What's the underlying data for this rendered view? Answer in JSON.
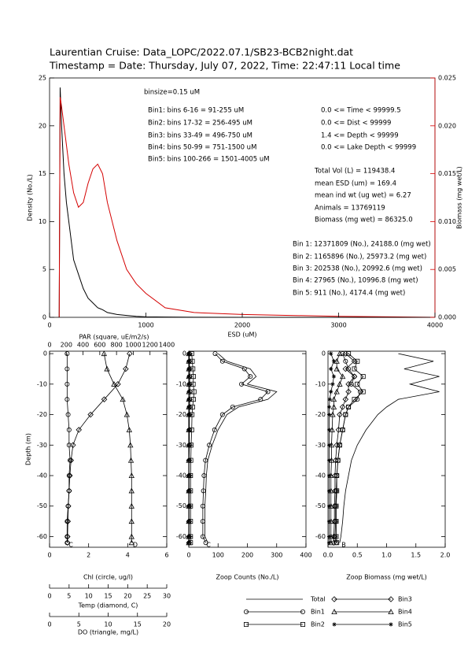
{
  "chart_data": [
    {
      "type": "line",
      "title": "Laurentian Cruise: Data_LOPC/2022.07.1/SB23-BCB2night.dat",
      "subtitle": "Timestamp = Date: Thursday, July 07, 2022, Time: 22:47:11 Local time",
      "xlabel": "ESD (uM)",
      "ylabel": "Density (No./L)",
      "y2label": "Biomass (mg wet/L)",
      "x": [
        100,
        110,
        125,
        150,
        175,
        200,
        250,
        300,
        350,
        400,
        450,
        500,
        550,
        600,
        700,
        800,
        900,
        1000,
        1200,
        1500,
        2000,
        2500,
        3000,
        4000
      ],
      "series": [
        {
          "color": "#000000",
          "values": [
            0,
            24,
            20,
            15,
            12,
            10,
            6,
            4.5,
            3,
            2,
            1.5,
            1,
            0.8,
            0.5,
            0.3,
            0.2,
            0.1,
            0.05,
            0.03,
            0.01,
            0,
            0,
            0,
            0
          ]
        },
        {
          "color": "#d40000",
          "axis": "y2",
          "values": [
            0,
            0.023,
            0.022,
            0.02,
            0.018,
            0.016,
            0.013,
            0.0115,
            0.012,
            0.014,
            0.0155,
            0.016,
            0.015,
            0.012,
            0.008,
            0.005,
            0.0035,
            0.0025,
            0.001,
            0.0005,
            0.0003,
            0.0002,
            0.0001,
            0
          ]
        }
      ],
      "xlim": [
        0,
        4000
      ],
      "xticks": [
        0,
        1000,
        2000,
        3000,
        4000
      ],
      "ylim": [
        0,
        25
      ],
      "yticks": [
        0,
        5,
        10,
        15,
        20,
        25
      ],
      "y2lim": [
        0,
        0.025
      ],
      "y2ticks": [
        {
          "value": 0,
          "label": "0.000"
        },
        {
          "value": 0.005,
          "label": "0.005"
        },
        {
          "value": 0.01,
          "label": "0.010"
        },
        {
          "value": 0.015,
          "label": "0.015"
        },
        {
          "value": 0.02,
          "label": "0.020"
        },
        {
          "value": 0.025,
          "label": "0.025"
        }
      ],
      "annotations": [
        "binsize=0.15 uM",
        "Bin1: bins 6-16 = 91-255 uM",
        "Bin2: bins 17-32 = 256-495 uM",
        "Bin3: bins 33-49 = 496-750 uM",
        "Bin4: bins 50-99 = 751-1500 uM",
        "Bin5: bins 100-266 = 1501-4005 uM",
        "0.0 <= Time < 99999.5",
        "0.0 <= Dist < 99999",
        "1.4 <= Depth < 99999",
        "0.0 <= Lake Depth < 99999",
        "Total Vol (L) = 119438.4",
        "mean ESD (um) = 169.4",
        "mean ind wt (ug wet) = 6.27",
        "Animals = 13769119",
        "Biomass (mg wet) = 86325.0",
        "Bin 1: 12371809 (No.), 24188.0 (mg wet)",
        "Bin 2: 1165896 (No.), 25973.2 (mg wet)",
        "Bin 3: 202538 (No.), 20992.6 (mg wet)",
        "Bin 4: 27965 (No.), 10996.8 (mg wet)",
        "Bin 5: 911 (No.), 4174.4 (mg wet)"
      ]
    },
    {
      "type": "profile",
      "ylabel": "Depth (m)",
      "ylim": [
        -63.5,
        0.8
      ],
      "yticks": [
        0,
        -10,
        -20,
        -30,
        -40,
        -50,
        -60
      ],
      "depth": [
        0,
        -5,
        -10,
        -15,
        -20,
        -25,
        -30,
        -35,
        -40,
        -45,
        -50,
        -55,
        -60,
        -62
      ],
      "axes": [
        {
          "label": "Chl (circle, ug/l)",
          "xlim": [
            0,
            6
          ],
          "xticks": [
            0,
            2,
            4,
            6
          ]
        },
        {
          "label": "Temp (diamond, C)",
          "xlim": [
            0,
            30
          ],
          "xticks": [
            0,
            5,
            10,
            15,
            20,
            25,
            30
          ]
        },
        {
          "label": "DO (triangle, mg/L)",
          "xlim": [
            0,
            20
          ],
          "xticks": [
            0,
            5,
            10,
            15,
            20
          ]
        },
        {
          "label": "PAR (square, uE/m2/s)",
          "xlim": [
            0,
            1400
          ],
          "xticks": [
            0,
            200,
            400,
            600,
            800,
            1000,
            1200,
            1400
          ]
        }
      ],
      "series": [
        {
          "axis": 0,
          "marker": "circle",
          "color": "#000000",
          "values": [
            0.9,
            0.9,
            0.9,
            0.9,
            0.95,
            1.0,
            1.0,
            1.05,
            1.0,
            1.0,
            0.95,
            0.9,
            0.9,
            0.9
          ]
        },
        {
          "axis": 1,
          "marker": "diamond",
          "color": "#000000",
          "values": [
            20.5,
            19.5,
            17.5,
            14,
            10.5,
            7.5,
            6,
            5.5,
            5.2,
            5,
            4.8,
            4.7,
            4.6,
            4.6
          ]
        },
        {
          "axis": 2,
          "marker": "triangle",
          "color": "#000000",
          "values": [
            9.3,
            9.8,
            11,
            12.5,
            13.2,
            13.6,
            13.8,
            13.9,
            14,
            14,
            14,
            14,
            14,
            14
          ]
        }
      ],
      "annotations": [
        "C",
        "D"
      ]
    },
    {
      "type": "profile",
      "ylim": [
        -63.5,
        0.8
      ],
      "yticks": [
        0,
        -10,
        -20,
        -30,
        -40,
        -50,
        -60
      ],
      "depth": [
        0,
        -2.5,
        -5,
        -7.5,
        -10,
        -12.5,
        -15,
        -17.5,
        -20,
        -25,
        -30,
        -35,
        -40,
        -45,
        -50,
        -55,
        -60,
        -62
      ],
      "axes": [
        {
          "label": "Zoop Counts (No./L)",
          "xlim": [
            0,
            400
          ],
          "xticks": [
            0,
            100,
            200,
            300,
            400
          ]
        }
      ],
      "series": [
        {
          "name": "Total",
          "axis": 0,
          "marker": "none",
          "color": "#000000",
          "values": [
            100,
            130,
            210,
            230,
            200,
            300,
            270,
            170,
            130,
            100,
            80,
            65,
            60,
            58,
            55,
            55,
            55,
            65
          ]
        },
        {
          "name": "Bin1",
          "axis": 0,
          "marker": "circle",
          "color": "#000000",
          "values": [
            90,
            115,
            190,
            210,
            180,
            270,
            245,
            150,
            115,
            88,
            70,
            57,
            52,
            50,
            48,
            48,
            48,
            58
          ]
        },
        {
          "name": "Bin2",
          "axis": 0,
          "marker": "square",
          "color": "#000000",
          "values": [
            10,
            12,
            14,
            16,
            15,
            18,
            16,
            13,
            11,
            10,
            8,
            7,
            6,
            6,
            6,
            6,
            6,
            6
          ]
        },
        {
          "name": "Bin3",
          "axis": 0,
          "marker": "diamond",
          "color": "#000000",
          "values": [
            2,
            2,
            3,
            3,
            3,
            4,
            3,
            3,
            2,
            2,
            2,
            1,
            1,
            1,
            1,
            1,
            1,
            1
          ]
        },
        {
          "name": "Bin4",
          "axis": 0,
          "marker": "triangle",
          "color": "#000000",
          "values": [
            0.3,
            0.3,
            0.4,
            0.4,
            0.4,
            0.5,
            0.4,
            0.3,
            0.3,
            0.2,
            0.2,
            0.2,
            0.1,
            0.1,
            0.1,
            0.1,
            0.1,
            0.1
          ]
        },
        {
          "name": "Bin5",
          "axis": 0,
          "marker": "star",
          "color": "#000000",
          "values": [
            0,
            0,
            0,
            0,
            0,
            0,
            0,
            0,
            0,
            0,
            0,
            0,
            0,
            0,
            0,
            0,
            0,
            0
          ]
        }
      ],
      "annotations": [
        "C"
      ]
    },
    {
      "type": "profile",
      "ylim": [
        -63.5,
        0.8
      ],
      "yticks": [
        0,
        -10,
        -20,
        -30,
        -40,
        -50,
        -60
      ],
      "depth": [
        0,
        -2.5,
        -5,
        -7.5,
        -10,
        -12.5,
        -15,
        -17.5,
        -20,
        -25,
        -30,
        -35,
        -40,
        -45,
        -50,
        -55,
        -60,
        -62
      ],
      "axes": [
        {
          "label": "Zoop Biomass (mg wet/L)",
          "xlim": [
            0,
            2
          ],
          "xticks": [
            {
              "value": 0,
              "label": "0.0"
            },
            0.5,
            {
              "value": 1,
              "label": "1.0"
            },
            1.5,
            {
              "value": 2,
              "label": "2.0"
            }
          ]
        }
      ],
      "series": [
        {
          "axis": 0,
          "marker": "none",
          "color": "#000000",
          "values": [
            1.2,
            1.8,
            1.3,
            1.9,
            1.4,
            1.9,
            1.2,
            1.0,
            0.85,
            0.65,
            0.5,
            0.4,
            0.35,
            0.3,
            0.27,
            0.25,
            0.22,
            0.2
          ]
        },
        {
          "axis": 0,
          "marker": "circle",
          "color": "#000000",
          "values": [
            0.25,
            0.3,
            0.35,
            0.45,
            0.4,
            0.55,
            0.5,
            0.35,
            0.3,
            0.25,
            0.2,
            0.17,
            0.15,
            0.14,
            0.13,
            0.13,
            0.12,
            0.14
          ]
        },
        {
          "axis": 0,
          "marker": "square",
          "color": "#000000",
          "values": [
            0.35,
            0.5,
            0.45,
            0.6,
            0.5,
            0.6,
            0.45,
            0.35,
            0.3,
            0.25,
            0.2,
            0.17,
            0.15,
            0.15,
            0.14,
            0.14,
            0.14,
            0.15
          ]
        },
        {
          "axis": 0,
          "marker": "diamond",
          "color": "#000000",
          "values": [
            0.3,
            0.45,
            0.3,
            0.45,
            0.35,
            0.35,
            0.3,
            0.25,
            0.2,
            0.18,
            0.15,
            0.13,
            0.12,
            0.12,
            0.11,
            0.11,
            0.1,
            0.1
          ]
        },
        {
          "axis": 0,
          "marker": "triangle",
          "color": "#000000",
          "values": [
            0.2,
            0.15,
            0.15,
            0.25,
            0.2,
            0.15,
            0.1,
            0.1,
            0.08,
            0.07,
            0.06,
            0.06,
            0.05,
            0.05,
            0.05,
            0.05,
            0.05,
            0.05
          ]
        },
        {
          "axis": 0,
          "marker": "star",
          "color": "#000000",
          "values": [
            0.05,
            0.1,
            0.05,
            0.1,
            0.08,
            0.05,
            0.03,
            0.02,
            0.02,
            0.02,
            0.02,
            0.02,
            0.02,
            0.02,
            0.02,
            0.02,
            0.02,
            0.02
          ]
        }
      ],
      "annotations": [
        "B"
      ]
    }
  ]
}
